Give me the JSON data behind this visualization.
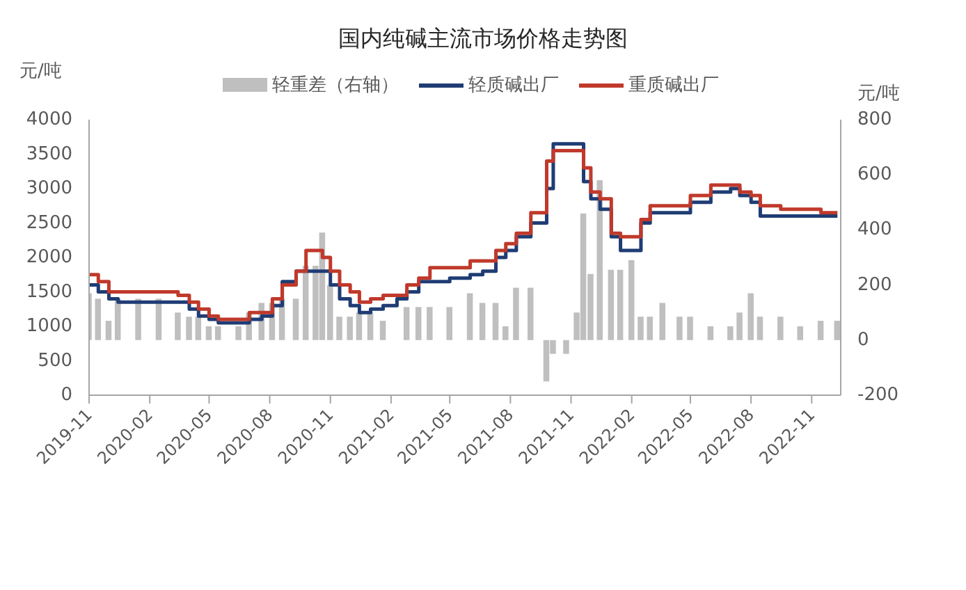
{
  "chart_data": {
    "type": "step",
    "title": "国内纯碱主流市场价格走势图",
    "ylabel": "元/吨",
    "y2label": "元/吨",
    "x": [
      "2019-11-01",
      "2019-11-15",
      "2019-12-01",
      "2019-12-15",
      "2020-01-15",
      "2020-02-15",
      "2020-03-15",
      "2020-04-01",
      "2020-04-15",
      "2020-05-01",
      "2020-05-15",
      "2020-06-15",
      "2020-07-01",
      "2020-07-20",
      "2020-08-05",
      "2020-08-20",
      "2020-09-10",
      "2020-09-25",
      "2020-10-10",
      "2020-10-20",
      "2020-11-01",
      "2020-11-15",
      "2020-12-01",
      "2020-12-15",
      "2021-01-01",
      "2021-01-20",
      "2021-02-10",
      "2021-02-25",
      "2021-03-15",
      "2021-04-01",
      "2021-05-01",
      "2021-06-01",
      "2021-06-20",
      "2021-07-10",
      "2021-07-25",
      "2021-08-10",
      "2021-09-01",
      "2021-09-25",
      "2021-10-05",
      "2021-10-25",
      "2021-11-10",
      "2021-11-20",
      "2021-12-01",
      "2021-12-15",
      "2022-01-01",
      "2022-01-15",
      "2022-02-01",
      "2022-02-15",
      "2022-03-01",
      "2022-03-20",
      "2022-04-15",
      "2022-05-01",
      "2022-06-01",
      "2022-07-01",
      "2022-07-15",
      "2022-08-01",
      "2022-08-15",
      "2022-09-15",
      "2022-10-15",
      "2022-11-15",
      "2022-12-10"
    ],
    "series": [
      {
        "name": "轻重差（右轴）",
        "type": "bar",
        "axis": "y2",
        "color": "#bfbfbf",
        "values": [
          170,
          150,
          70,
          150,
          150,
          150,
          100,
          85,
          85,
          50,
          50,
          50,
          100,
          135,
          135,
          150,
          150,
          270,
          270,
          390,
          200,
          85,
          85,
          100,
          100,
          70,
          0,
          120,
          120,
          120,
          120,
          170,
          135,
          135,
          50,
          190,
          190,
          -150,
          -50,
          -50,
          100,
          460,
          240,
          580,
          255,
          255,
          290,
          85,
          85,
          135,
          85,
          85,
          50,
          50,
          100,
          170,
          85,
          85,
          50,
          70,
          70
        ]
      },
      {
        "name": "轻质碱出厂",
        "color": "#1f3c74",
        "values": [
          1600,
          1500,
          1400,
          1350,
          1350,
          1350,
          1350,
          1250,
          1150,
          1100,
          1050,
          1050,
          1100,
          1150,
          1300,
          1650,
          1800,
          1800,
          1800,
          1800,
          1600,
          1400,
          1300,
          1200,
          1250,
          1300,
          1400,
          1500,
          1650,
          1650,
          1700,
          1750,
          1800,
          2000,
          2100,
          2300,
          2500,
          3000,
          3650,
          3650,
          3650,
          3100,
          2850,
          2700,
          2300,
          2100,
          2100,
          2500,
          2650,
          2650,
          2650,
          2800,
          2950,
          3000,
          2900,
          2800,
          2600,
          2600,
          2600,
          2600,
          2600
        ]
      },
      {
        "name": "重质碱出厂",
        "color": "#c0392b",
        "values": [
          1750,
          1650,
          1500,
          1500,
          1500,
          1500,
          1450,
          1350,
          1250,
          1150,
          1100,
          1100,
          1200,
          1200,
          1400,
          1600,
          1800,
          2100,
          2100,
          2000,
          1800,
          1600,
          1500,
          1350,
          1400,
          1450,
          1450,
          1600,
          1700,
          1850,
          1850,
          1950,
          1950,
          2100,
          2200,
          2350,
          2650,
          3400,
          3550,
          3550,
          3550,
          3300,
          2950,
          2850,
          2350,
          2300,
          2300,
          2550,
          2750,
          2750,
          2750,
          2900,
          3050,
          3050,
          2950,
          2900,
          2750,
          2700,
          2700,
          2650,
          2650
        ]
      }
    ],
    "xlim": [
      "2019-11-01",
      "2022-12-15"
    ],
    "xticks": [
      "2019-11",
      "2020-02",
      "2020-05",
      "2020-08",
      "2020-11",
      "2021-02",
      "2021-05",
      "2021-08",
      "2021-11",
      "2022-02",
      "2022-05",
      "2022-08",
      "2022-11"
    ],
    "ylim": [
      0,
      4000
    ],
    "yticks": [
      0,
      500,
      1000,
      1500,
      2000,
      2500,
      3000,
      3500,
      4000
    ],
    "y2lim": [
      -200,
      800
    ],
    "y2ticks": [
      -200,
      0,
      200,
      400,
      600,
      800
    ],
    "grid": false,
    "legend": "top"
  }
}
